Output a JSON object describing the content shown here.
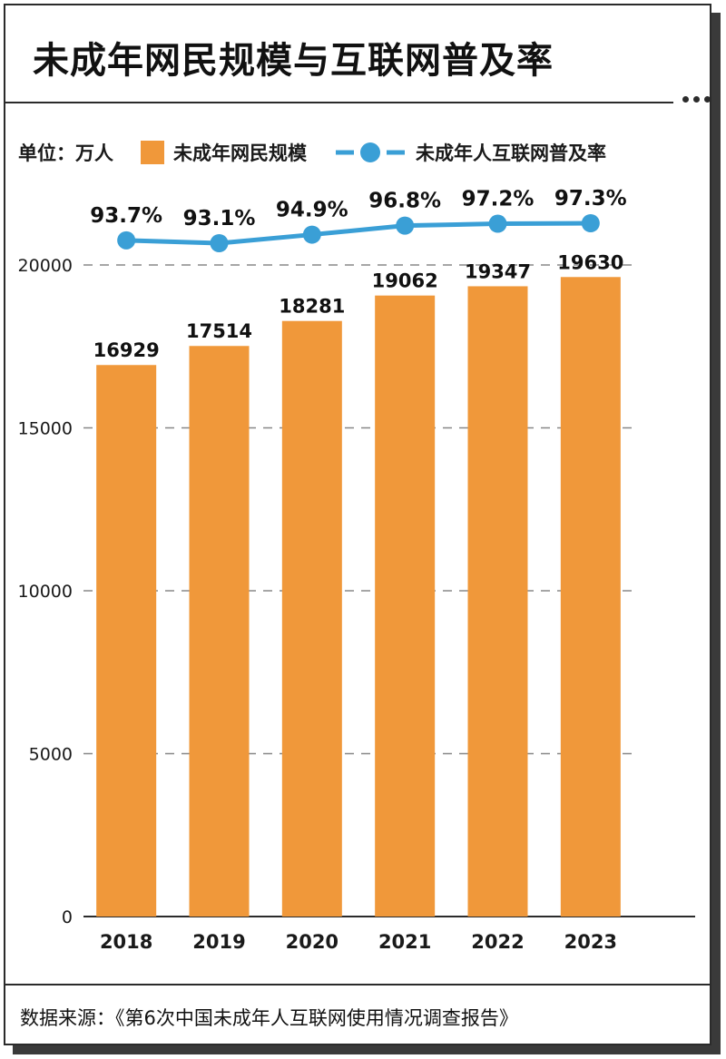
{
  "title": "未成年网民规模与互联网普及率",
  "legend": {
    "unit": "单位：万人",
    "bar_series": "未成年网民规模",
    "line_series": "未成年人互联网普及率"
  },
  "source": "数据来源：《第6次中国未成年人互联网使用情况调查报告》",
  "colors": {
    "bar": "#f0983a",
    "line": "#3a9fd6",
    "grid": "#888888",
    "frame": "#2b2b2b"
  },
  "chart_data": {
    "type": "bar",
    "title": "未成年网民规模与互联网普及率",
    "categories": [
      "2018",
      "2019",
      "2020",
      "2021",
      "2022",
      "2023"
    ],
    "series": [
      {
        "name": "未成年网民规模",
        "type": "bar",
        "values": [
          16929,
          17514,
          18281,
          19062,
          19347,
          19630
        ]
      },
      {
        "name": "未成年人互联网普及率",
        "type": "line",
        "values": [
          93.7,
          93.1,
          94.9,
          96.8,
          97.2,
          97.3
        ],
        "labels": [
          "93.7%",
          "93.1%",
          "94.9%",
          "96.8%",
          "97.2%",
          "97.3%"
        ]
      }
    ],
    "bar_value_labels": [
      "16929",
      "17514",
      "18281",
      "19062",
      "19347",
      "19630"
    ],
    "y_ticks": [
      "0",
      "5000",
      "10000",
      "15000",
      "20000"
    ],
    "y_tick_values": [
      0,
      5000,
      10000,
      15000,
      20000
    ],
    "ylim": [
      0,
      20000
    ],
    "grid": true,
    "legend_position": "top"
  }
}
